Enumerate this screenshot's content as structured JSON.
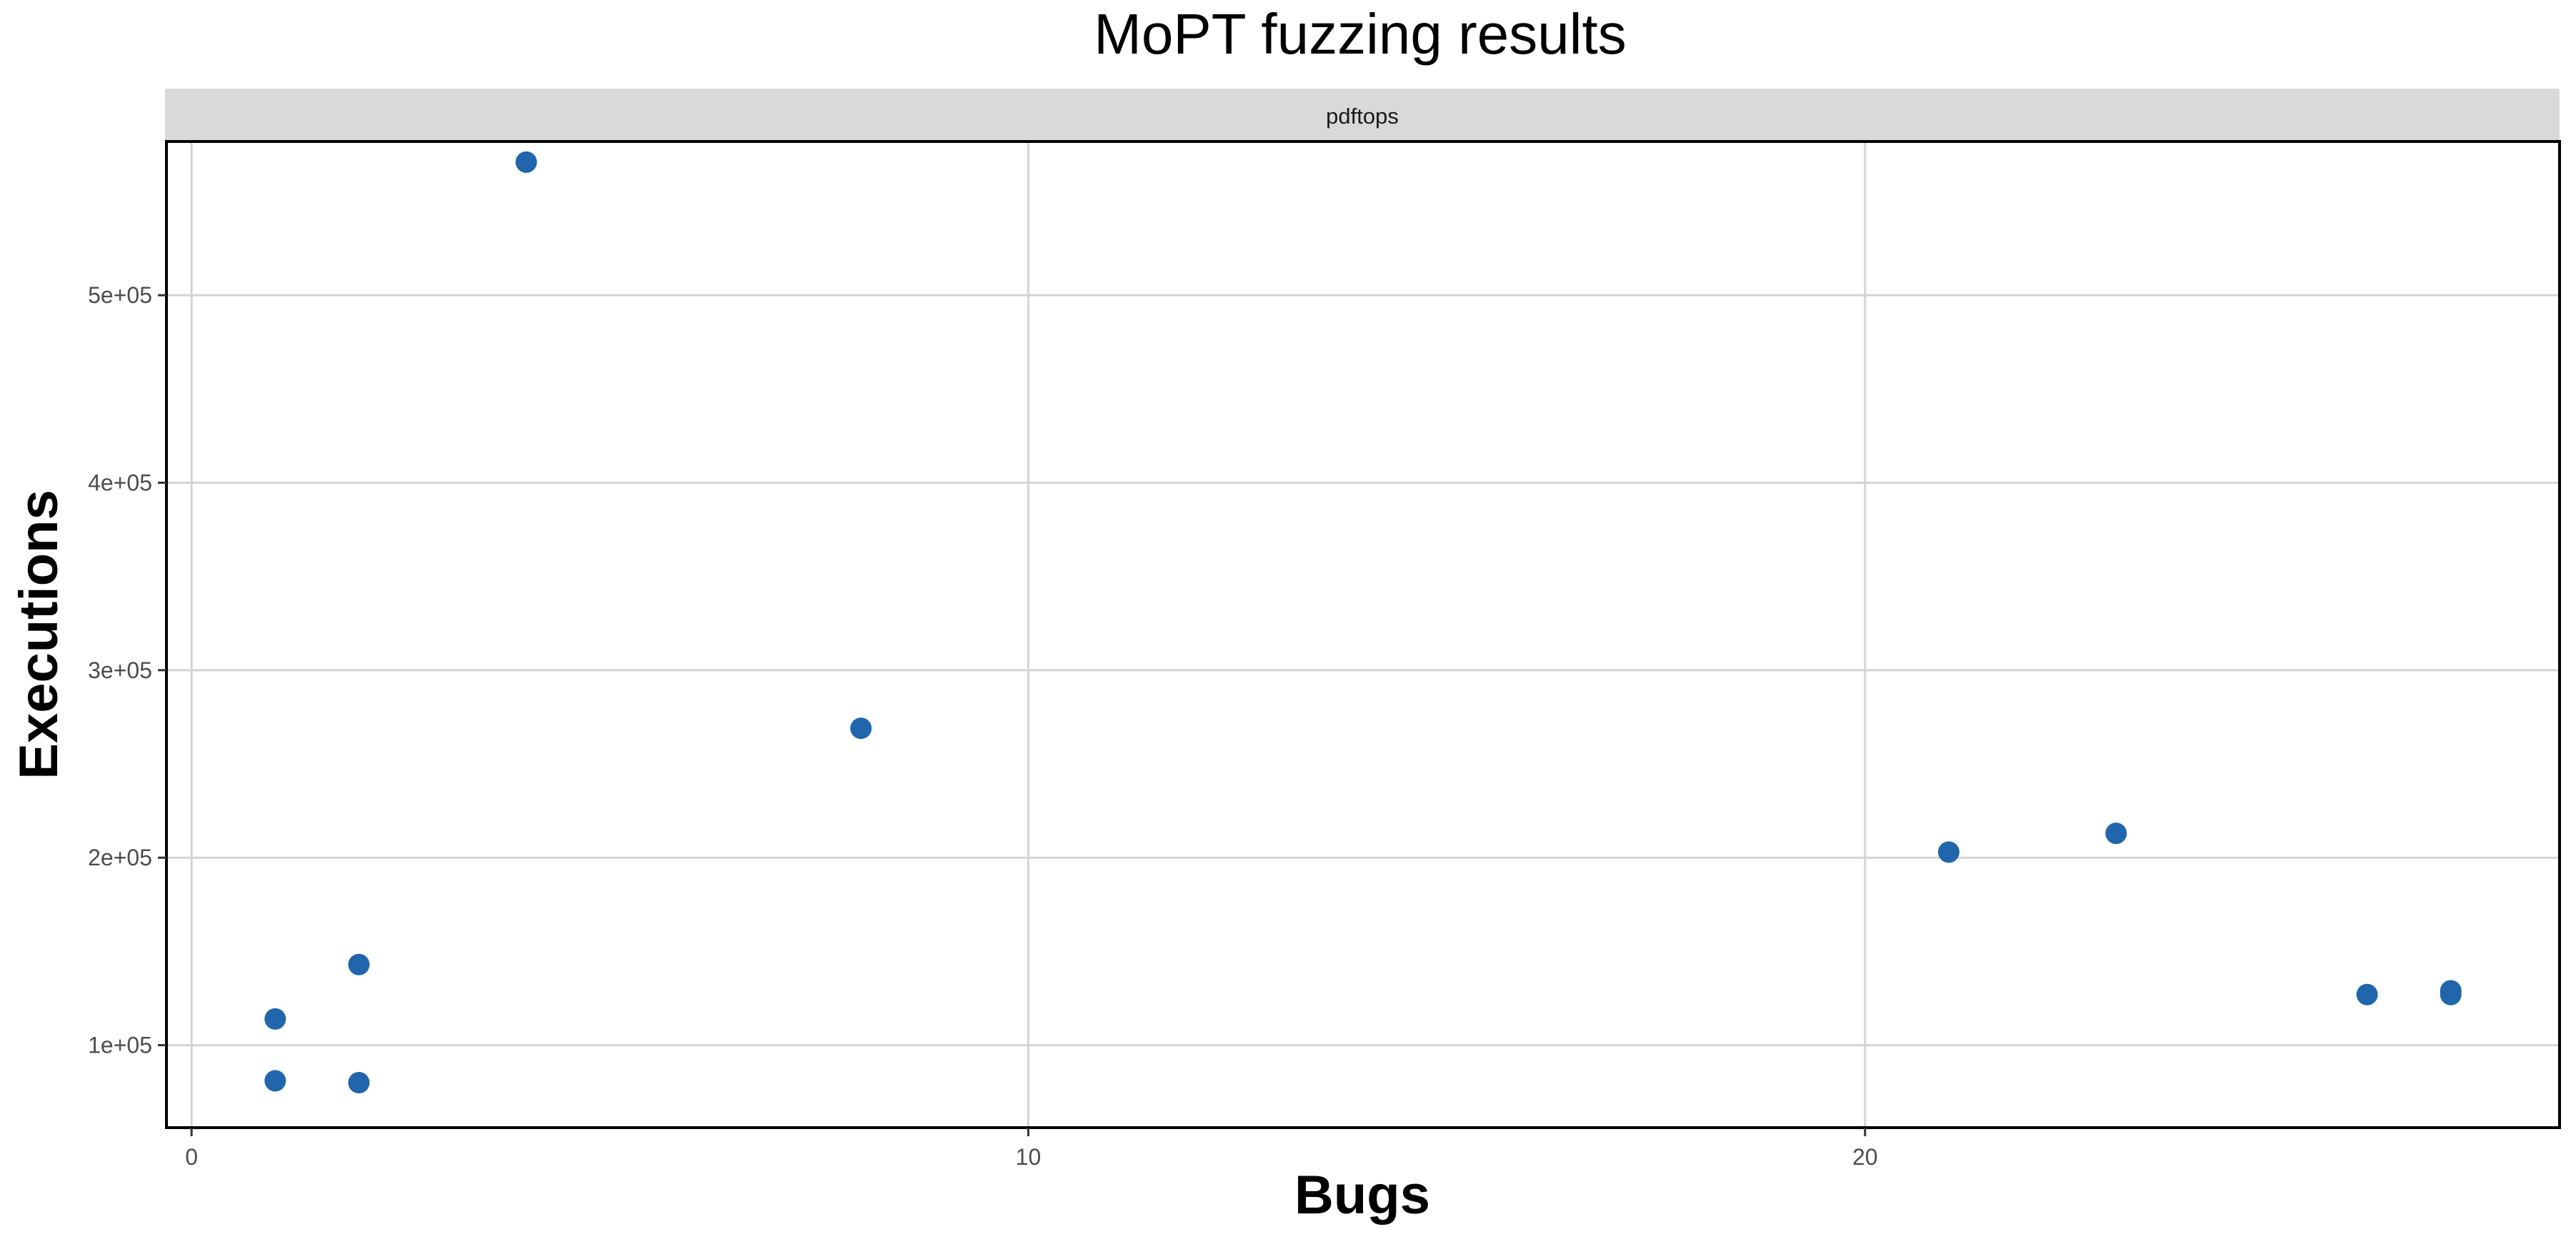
{
  "chart_data": {
    "type": "scatter",
    "title": "MoPT fuzzing results",
    "xlabel": "Bugs",
    "ylabel": "Executions",
    "facet_label": "pdftops",
    "xlim": [
      -0.3,
      28.3
    ],
    "ylim": [
      56000,
      582000
    ],
    "x_ticks": [
      0,
      10,
      20
    ],
    "x_tick_labels": [
      "0",
      "10",
      "20"
    ],
    "y_ticks": [
      100000,
      200000,
      300000,
      400000,
      500000
    ],
    "y_tick_labels": [
      "1e+05",
      "2e+05",
      "3e+05",
      "4e+05",
      "5e+05"
    ],
    "grid": true,
    "legend": "none",
    "point_color": "#2166ac",
    "points": [
      {
        "x": 1,
        "y": 81000
      },
      {
        "x": 1,
        "y": 114000
      },
      {
        "x": 2,
        "y": 80000
      },
      {
        "x": 2,
        "y": 143000
      },
      {
        "x": 4,
        "y": 571000
      },
      {
        "x": 8,
        "y": 269000
      },
      {
        "x": 21,
        "y": 203000
      },
      {
        "x": 23,
        "y": 213000
      },
      {
        "x": 26,
        "y": 127000
      },
      {
        "x": 27,
        "y": 129000
      },
      {
        "x": 27,
        "y": 127000
      }
    ]
  }
}
